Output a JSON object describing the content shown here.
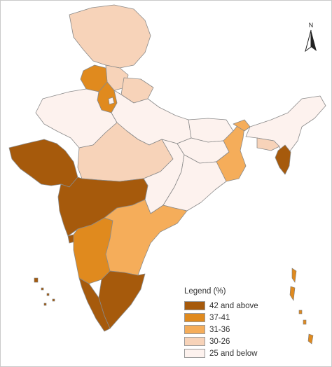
{
  "map": {
    "north_label": "N",
    "legend_title": "Legend (%)",
    "legend": [
      {
        "label": "42 and above",
        "color": "#a65a0c"
      },
      {
        "label": "37-41",
        "color": "#e08a1e"
      },
      {
        "label": "31-36",
        "color": "#f5ad5a"
      },
      {
        "label": "30-26",
        "color": "#f7d3b9"
      },
      {
        "label": "25 and below",
        "color": "#fdf2ee"
      }
    ],
    "regions": [
      {
        "name": "Jammu and Kashmir",
        "class": 3
      },
      {
        "name": "Himachal Pradesh",
        "class": 3
      },
      {
        "name": "Punjab",
        "class": 1
      },
      {
        "name": "Haryana",
        "class": 1
      },
      {
        "name": "Delhi",
        "class": 4
      },
      {
        "name": "Uttarakhand",
        "class": 3
      },
      {
        "name": "Rajasthan",
        "class": 4
      },
      {
        "name": "Uttar Pradesh",
        "class": 4
      },
      {
        "name": "Bihar",
        "class": 4
      },
      {
        "name": "Gujarat",
        "class": 0
      },
      {
        "name": "Madhya Pradesh",
        "class": 3
      },
      {
        "name": "Chhattisgarh",
        "class": 4
      },
      {
        "name": "Jharkhand",
        "class": 4
      },
      {
        "name": "West Bengal",
        "class": 2
      },
      {
        "name": "Odisha",
        "class": 4
      },
      {
        "name": "Maharashtra",
        "class": 0
      },
      {
        "name": "Goa",
        "class": 0
      },
      {
        "name": "Karnataka",
        "class": 1
      },
      {
        "name": "Andhra Pradesh",
        "class": 2
      },
      {
        "name": "Tamil Nadu",
        "class": 0
      },
      {
        "name": "Kerala",
        "class": 0
      },
      {
        "name": "Sikkim",
        "class": 2
      },
      {
        "name": "Northeast",
        "class": 4
      },
      {
        "name": "Meghalaya",
        "class": 3
      },
      {
        "name": "Tripura",
        "class": 0
      },
      {
        "name": "Lakshadweep",
        "class": 0
      },
      {
        "name": "Andaman and Nicobar",
        "class": 1
      }
    ]
  }
}
